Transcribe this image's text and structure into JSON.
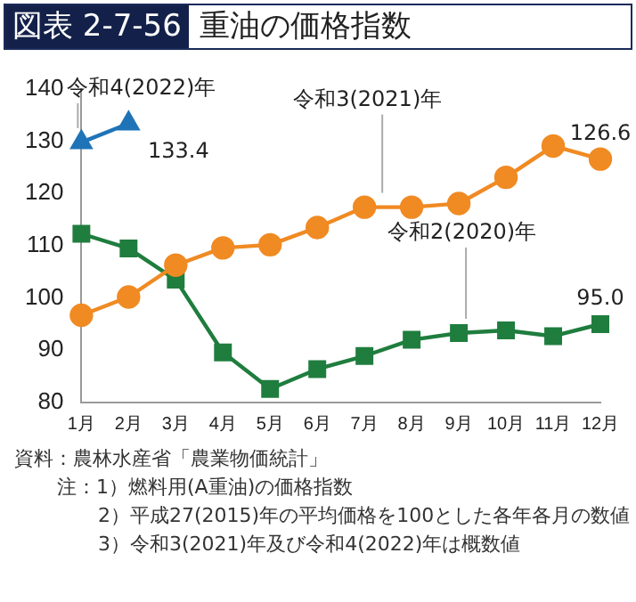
{
  "chart_data": {
    "type": "line",
    "title": "図表 2-7-56",
    "subtitle": "重油の価格指数",
    "categories": [
      "1月",
      "2月",
      "3月",
      "4月",
      "5月",
      "6月",
      "7月",
      "8月",
      "9月",
      "10月",
      "11月",
      "12月"
    ],
    "series": [
      {
        "name": "令和4(2022)年",
        "color": "#1f74b8",
        "marker": "triangle",
        "values": [
          129.8,
          133.4,
          null,
          null,
          null,
          null,
          null,
          null,
          null,
          null,
          null,
          null
        ],
        "value_labels": [
          null,
          "133.4",
          null,
          null,
          null,
          null,
          null,
          null,
          null,
          null,
          null,
          null
        ]
      },
      {
        "name": "令和3(2021)年",
        "color": "#f08a22",
        "marker": "circle",
        "values": [
          96.7,
          100.2,
          106.3,
          109.6,
          110.2,
          113.5,
          117.4,
          117.4,
          118.1,
          123.1,
          129.1,
          126.6
        ],
        "value_labels": [
          null,
          null,
          null,
          null,
          null,
          null,
          null,
          null,
          null,
          null,
          null,
          "126.6"
        ]
      },
      {
        "name": "令和2(2020)年",
        "color": "#1f7d3e",
        "marker": "square",
        "values": [
          112.3,
          109.5,
          103.5,
          89.6,
          82.6,
          86.4,
          88.9,
          92.0,
          93.3,
          93.8,
          92.7,
          95.0
        ],
        "value_labels": [
          null,
          null,
          null,
          null,
          null,
          null,
          null,
          null,
          null,
          null,
          null,
          "95.0"
        ]
      }
    ],
    "ylim": [
      80,
      140
    ],
    "yticks": [
      80,
      90,
      100,
      110,
      120,
      130,
      140
    ],
    "grid": false,
    "legend": false,
    "annotations": [
      "資料：農林水産省「農業物価統計」",
      "注：1）燃料用(A重油)の価格指数",
      "2）平成27(2015)年の平均価格を100とした各年各月の数値",
      "3）令和3(2021)年及び令和4(2022)年は概数値"
    ]
  }
}
